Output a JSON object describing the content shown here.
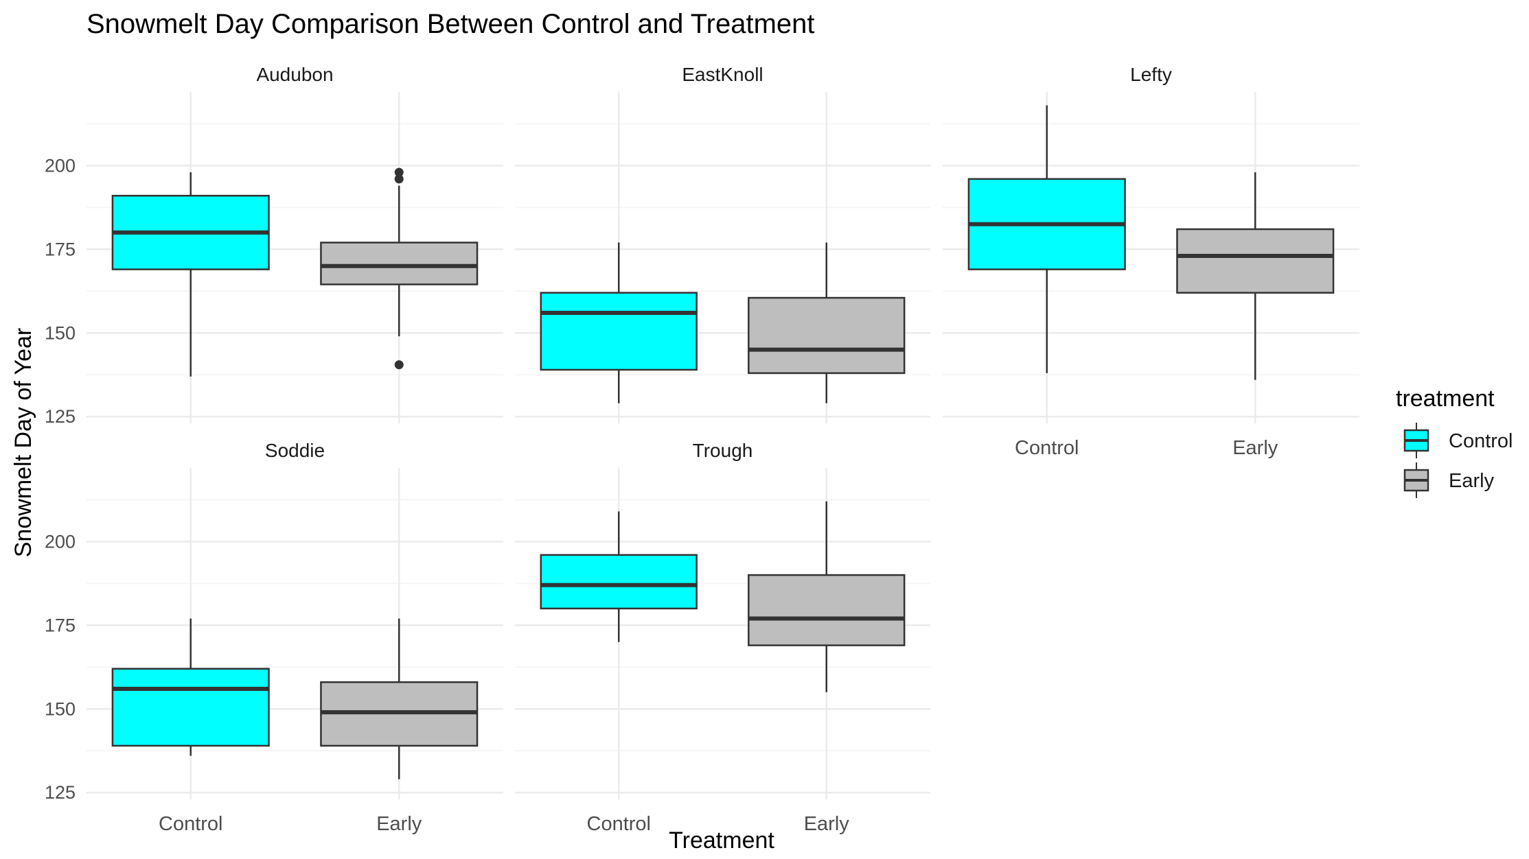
{
  "chart_data": {
    "type": "boxplot",
    "title": "Snowmelt Day Comparison Between Control and Treatment",
    "xlabel": "Treatment",
    "ylabel": "Snowmelt Day of Year",
    "categories": [
      "Control",
      "Early"
    ],
    "ylim": [
      123,
      222
    ],
    "yticks": [
      125,
      150,
      175,
      200
    ],
    "grid": true,
    "legend": {
      "title": "treatment",
      "placement": "right",
      "entries": [
        {
          "name": "Control",
          "color": "#00FFFF"
        },
        {
          "name": "Early",
          "color": "#BEBEBE"
        }
      ]
    },
    "panels": [
      {
        "name": "Audubon",
        "boxes": [
          {
            "category": "Control",
            "min": 137,
            "q1": 169,
            "median": 180,
            "q3": 191,
            "max": 198,
            "outliers": []
          },
          {
            "category": "Early",
            "min": 149,
            "q1": 164.5,
            "median": 170,
            "q3": 177,
            "max": 194,
            "outliers": [
              196,
              198,
              140.5
            ]
          }
        ]
      },
      {
        "name": "EastKnoll",
        "boxes": [
          {
            "category": "Control",
            "min": 129,
            "q1": 139,
            "median": 156,
            "q3": 162,
            "max": 177,
            "outliers": []
          },
          {
            "category": "Early",
            "min": 129,
            "q1": 138,
            "median": 145,
            "q3": 160.5,
            "max": 177,
            "outliers": []
          }
        ]
      },
      {
        "name": "Lefty",
        "boxes": [
          {
            "category": "Control",
            "min": 138,
            "q1": 169,
            "median": 182.5,
            "q3": 196,
            "max": 218,
            "outliers": []
          },
          {
            "category": "Early",
            "min": 136,
            "q1": 162,
            "median": 173,
            "q3": 181,
            "max": 198,
            "outliers": []
          }
        ]
      },
      {
        "name": "Soddie",
        "boxes": [
          {
            "category": "Control",
            "min": 136,
            "q1": 139,
            "median": 156,
            "q3": 162,
            "max": 177,
            "outliers": []
          },
          {
            "category": "Early",
            "min": 129,
            "q1": 139,
            "median": 149,
            "q3": 158,
            "max": 177,
            "outliers": []
          }
        ]
      },
      {
        "name": "Trough",
        "boxes": [
          {
            "category": "Control",
            "min": 170,
            "q1": 180,
            "median": 187,
            "q3": 196,
            "max": 209,
            "outliers": []
          },
          {
            "category": "Early",
            "min": 155,
            "q1": 169,
            "median": 177,
            "q3": 190,
            "max": 212,
            "outliers": []
          }
        ]
      }
    ]
  },
  "colors": {
    "control_fill": "#00FFFF",
    "early_fill": "#BEBEBE",
    "box_stroke": "#333333",
    "grid_major": "#EBEBEB",
    "grid_minor": "#F5F5F5",
    "text": "#000000",
    "tick_text": "#4D4D4D"
  }
}
